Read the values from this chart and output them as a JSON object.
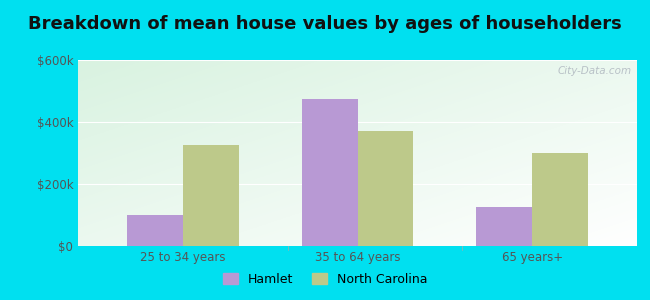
{
  "title": "Breakdown of mean house values by ages of householders",
  "categories": [
    "25 to 34 years",
    "35 to 64 years",
    "65 years+"
  ],
  "hamlet_values": [
    100000,
    475000,
    125000
  ],
  "nc_values": [
    325000,
    370000,
    300000
  ],
  "ylim": [
    0,
    600000
  ],
  "yticks": [
    0,
    200000,
    400000,
    600000
  ],
  "ytick_labels": [
    "$0",
    "$200k",
    "$400k",
    "$600k"
  ],
  "hamlet_color": "#b899d4",
  "nc_color": "#bdc98a",
  "background_outer": "#00e0f0",
  "legend_hamlet": "Hamlet",
  "legend_nc": "North Carolina",
  "bar_width": 0.32,
  "title_fontsize": 13,
  "watermark": "City-Data.com"
}
